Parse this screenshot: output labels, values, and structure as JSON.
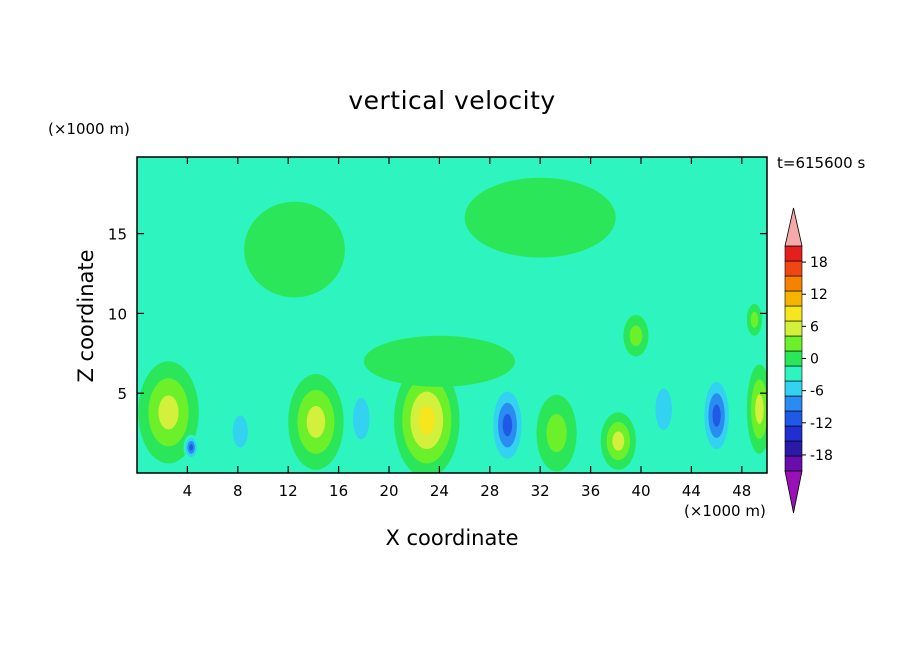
{
  "chart_data": {
    "type": "heatmap",
    "title": "vertical velocity",
    "xlabel": "X coordinate",
    "ylabel": "Z coordinate",
    "x_unit_label": "(×1000 m)",
    "y_unit_label": "(×1000 m)",
    "time_label": "t=615600 s",
    "xlim": [
      0,
      50
    ],
    "ylim": [
      0,
      19.8
    ],
    "x_ticks": [
      "4",
      "8",
      "12",
      "16",
      "20",
      "24",
      "28",
      "32",
      "36",
      "40",
      "44",
      "48"
    ],
    "y_ticks": [
      "5",
      "10",
      "15"
    ],
    "background_value": -1,
    "colorbar": {
      "levels": [
        -21,
        -18,
        -15,
        -12,
        -9,
        -6,
        -3,
        0,
        3,
        6,
        9,
        12,
        15,
        18,
        21
      ],
      "labels": [
        "18",
        "12",
        "6",
        "0",
        "-6",
        "-12",
        "-18"
      ],
      "colors": [
        "#6a0dad",
        "#2a1aa8",
        "#1f2fd0",
        "#1e5ae6",
        "#2a8cf0",
        "#32d2f0",
        "#2ef5c0",
        "#2ce65a",
        "#6cf02a",
        "#d2f03c",
        "#f5e61e",
        "#f5b400",
        "#f58200",
        "#f04614",
        "#e61e1e"
      ],
      "under_color": "#9a10b8",
      "over_color": "#f5aaaa"
    },
    "features": [
      {
        "x": 2.5,
        "z": 3.8,
        "rx": 2.4,
        "rz": 3.2,
        "value": 8
      },
      {
        "x": 4.3,
        "z": 1.6,
        "rx": 0.6,
        "rz": 0.8,
        "value": -11
      },
      {
        "x": 8.2,
        "z": 2.6,
        "rx": 1.2,
        "rz": 2.0,
        "value": -4
      },
      {
        "x": 14.2,
        "z": 3.2,
        "rx": 2.2,
        "rz": 3.0,
        "value": 8
      },
      {
        "x": 17.8,
        "z": 3.4,
        "rx": 1.3,
        "rz": 2.6,
        "value": -4
      },
      {
        "x": 23.0,
        "z": 3.3,
        "rx": 2.6,
        "rz": 3.6,
        "value": 12
      },
      {
        "x": 29.4,
        "z": 3.0,
        "rx": 1.5,
        "rz": 2.8,
        "value": -12
      },
      {
        "x": 33.3,
        "z": 2.5,
        "rx": 1.6,
        "rz": 2.4,
        "value": 6
      },
      {
        "x": 38.2,
        "z": 2.0,
        "rx": 1.4,
        "rz": 1.8,
        "value": 8
      },
      {
        "x": 41.8,
        "z": 4.0,
        "rx": 1.3,
        "rz": 2.6,
        "value": -4
      },
      {
        "x": 46.0,
        "z": 3.6,
        "rx": 1.3,
        "rz": 2.8,
        "value": -12
      },
      {
        "x": 49.4,
        "z": 4.0,
        "rx": 1.0,
        "rz": 2.8,
        "value": 8
      },
      {
        "x": 39.6,
        "z": 8.6,
        "rx": 1.0,
        "rz": 1.3,
        "value": 4
      },
      {
        "x": 49.0,
        "z": 9.6,
        "rx": 0.6,
        "rz": 1.0,
        "value": 4
      },
      {
        "x": 12.5,
        "z": 14.0,
        "rx": 4.0,
        "rz": 3.0,
        "value": 1
      },
      {
        "x": 32.0,
        "z": 16.0,
        "rx": 6.0,
        "rz": 2.5,
        "value": 1
      },
      {
        "x": 24.0,
        "z": 7.0,
        "rx": 6.0,
        "rz": 1.6,
        "value": 1
      },
      {
        "x": 6.0,
        "z": 17.0,
        "rx": 3.0,
        "rz": 2.0,
        "value": -2
      }
    ]
  }
}
